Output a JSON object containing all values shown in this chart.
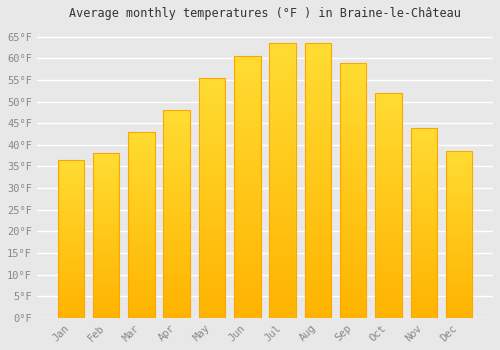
{
  "title": "Average monthly temperatures (°F ) in Braine-le-Château",
  "months": [
    "Jan",
    "Feb",
    "Mar",
    "Apr",
    "May",
    "Jun",
    "Jul",
    "Aug",
    "Sep",
    "Oct",
    "Nov",
    "Dec"
  ],
  "values": [
    36.5,
    38.0,
    43.0,
    48.0,
    55.5,
    60.5,
    63.5,
    63.5,
    59.0,
    52.0,
    44.0,
    38.5
  ],
  "bar_color_bottom": "#FFB300",
  "bar_color_top": "#FFCC00",
  "bar_edge_color": "#FFA500",
  "background_color": "#E8E8E8",
  "plot_bg_color": "#E8E8E8",
  "grid_color": "#FFFFFF",
  "ytick_labels": [
    "0°F",
    "5°F",
    "10°F",
    "15°F",
    "20°F",
    "25°F",
    "30°F",
    "35°F",
    "40°F",
    "45°F",
    "50°F",
    "55°F",
    "60°F",
    "65°F"
  ],
  "ytick_values": [
    0,
    5,
    10,
    15,
    20,
    25,
    30,
    35,
    40,
    45,
    50,
    55,
    60,
    65
  ],
  "ylim": [
    0,
    67
  ],
  "title_fontsize": 8.5,
  "tick_fontsize": 7.5,
  "tick_color": "#888888",
  "title_color": "#333333",
  "bar_width": 0.75
}
